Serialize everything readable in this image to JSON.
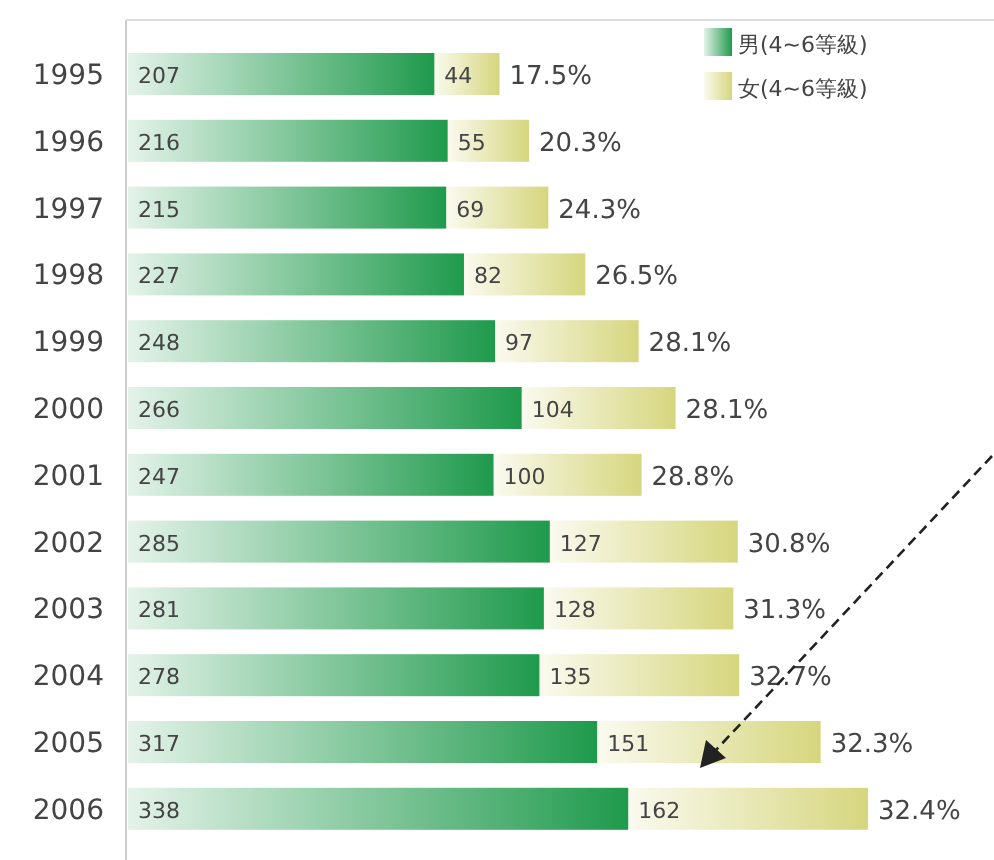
{
  "chart_data": {
    "type": "bar",
    "orientation": "horizontal",
    "stacked": true,
    "data_labels": true,
    "legend": "top right",
    "categories": [
      "1995",
      "1996",
      "1997",
      "1998",
      "1999",
      "2000",
      "2001",
      "2002",
      "2003",
      "2004",
      "2005",
      "2006"
    ],
    "series": [
      {
        "name": "男(4~6等級)",
        "color": "#1f9a4c",
        "values": [
          207,
          216,
          215,
          227,
          248,
          266,
          247,
          285,
          281,
          278,
          317,
          338
        ]
      },
      {
        "name": "女(4~6等級)",
        "color": "#d6d67e",
        "values": [
          44,
          55,
          69,
          82,
          97,
          104,
          100,
          127,
          128,
          135,
          151,
          162
        ]
      }
    ],
    "annotations": [
      {
        "text": "17.5%",
        "x": 251,
        "y": "1995"
      },
      {
        "text": "20.3%",
        "x": 271,
        "y": "1996"
      },
      {
        "text": "24.3%",
        "x": 284,
        "y": "1997"
      },
      {
        "text": "26.5%",
        "x": 309,
        "y": "1998"
      },
      {
        "text": "28.1%",
        "x": 345,
        "y": "1999"
      },
      {
        "text": "28.1%",
        "x": 370,
        "y": "2000"
      },
      {
        "text": "28.8%",
        "x": 347,
        "y": "2001"
      },
      {
        "text": "30.8%",
        "x": 412,
        "y": "2002"
      },
      {
        "text": "31.3%",
        "x": 409,
        "y": "2003"
      },
      {
        "text": "32.7%",
        "x": 413,
        "y": "2004"
      },
      {
        "text": "32.3%",
        "x": 468,
        "y": "2005"
      },
      {
        "text": "32.4%",
        "x": 500,
        "y": "2006"
      }
    ]
  }
}
